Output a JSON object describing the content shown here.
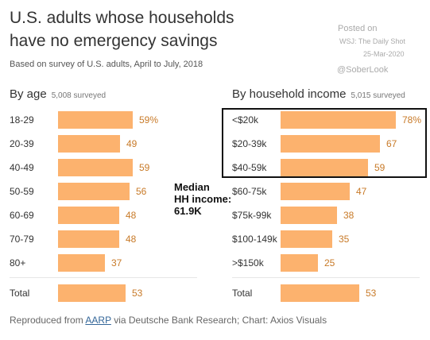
{
  "header": {
    "title_line1": "U.S. adults whose households",
    "title_line2": "have no emergency savings",
    "subtitle": "Based on survey of U.S. adults, April to July, 2018",
    "posted_line1": "Posted on",
    "posted_line2": "WSJ: The Daily Shot",
    "posted_line3": "25-Mar-2020",
    "handle": "@SoberLook"
  },
  "callout": {
    "line1": "Median",
    "line2": "HH income:",
    "line3": "61.9K"
  },
  "footer": {
    "prefix": "Reproduced from ",
    "link": "AARP",
    "suffix": " via Deutsche Bank Research; Chart: Axios Visuals"
  },
  "chart_data": [
    {
      "type": "bar",
      "title": "By age",
      "subtitle": "5,008 surveyed",
      "categories": [
        "18-29",
        "20-39",
        "40-49",
        "50-59",
        "60-69",
        "70-79",
        "80+"
      ],
      "values": [
        59,
        49,
        59,
        56,
        48,
        48,
        37
      ],
      "value_labels": [
        "59%",
        "49",
        "59",
        "56",
        "48",
        "48",
        "37"
      ],
      "total_label": "Total",
      "total_value": 53,
      "xlim": [
        0,
        80
      ],
      "unit": "%"
    },
    {
      "type": "bar",
      "title": "By household income",
      "subtitle": "5,015 surveyed",
      "categories": [
        "<$20k",
        "$20-39k",
        "$40-59k",
        "$60-75k",
        "$75k-99k",
        "$100-149k",
        ">$150k"
      ],
      "values": [
        78,
        67,
        59,
        47,
        38,
        35,
        25
      ],
      "value_labels": [
        "78%",
        "67",
        "59",
        "47",
        "38",
        "35",
        "25"
      ],
      "total_label": "Total",
      "total_value": 53,
      "xlim": [
        0,
        80
      ],
      "unit": "%"
    }
  ],
  "colors": {
    "bar": "#fcb26e",
    "value_text": "#c87a28"
  }
}
